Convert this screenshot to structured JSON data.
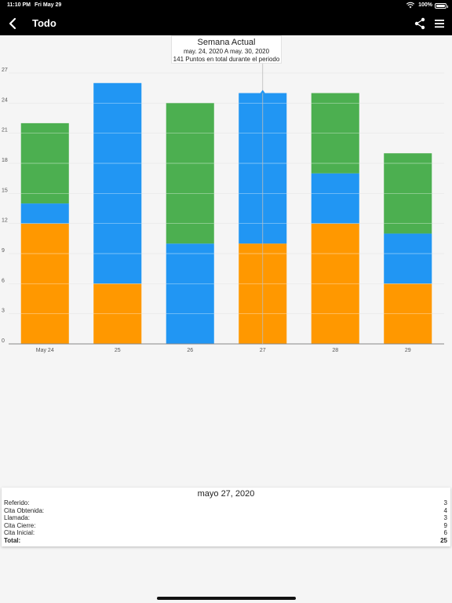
{
  "status_bar": {
    "time": "11:10 PM",
    "date": "Fri May 29",
    "battery": "100%"
  },
  "nav": {
    "title": "Todo",
    "icons": {
      "back": "chevron-left-icon",
      "share": "share-icon",
      "menu": "hamburger-menu-icon"
    }
  },
  "chart_header": {
    "title": "Semana Actual",
    "range": "may. 24, 2020 A may. 30, 2020",
    "total_text": "141 Puntos en total durante el periodo"
  },
  "colors": {
    "orange": "#FF9800",
    "blue": "#2196F3",
    "green": "#4CAF50"
  },
  "chart_data": {
    "type": "bar",
    "stacked": true,
    "categories": [
      "May 24",
      "25",
      "26",
      "27",
      "28",
      "29"
    ],
    "series": [
      {
        "color": "#FF9800",
        "values": [
          12,
          6,
          0,
          10,
          12,
          6
        ]
      },
      {
        "color": "#2196F3",
        "values": [
          2,
          20,
          10,
          15,
          5,
          5
        ]
      },
      {
        "color": "#4CAF50",
        "values": [
          8,
          0,
          14,
          0,
          8,
          8
        ]
      }
    ],
    "ylim": [
      0,
      27
    ],
    "yticks": [
      0,
      3,
      6,
      9,
      12,
      15,
      18,
      21,
      24,
      27
    ],
    "grid": true,
    "legend": "none"
  },
  "summary": {
    "title": "mayo 27, 2020",
    "rows": [
      {
        "label": "Referido:",
        "value": "3"
      },
      {
        "label": "Cita Obtenida:",
        "value": "4"
      },
      {
        "label": "Llamada:",
        "value": "3"
      },
      {
        "label": "Cita Cierre:",
        "value": "9"
      },
      {
        "label": "Cita Inicial:",
        "value": "6"
      }
    ],
    "total_label": "Total:",
    "total_value": "25"
  }
}
